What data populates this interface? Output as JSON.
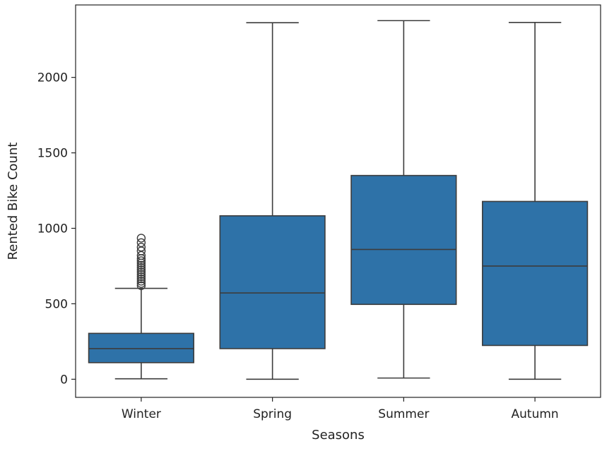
{
  "chart_data": {
    "type": "box",
    "xlabel": "Seasons",
    "ylabel": "Rented Bike Count",
    "categories": [
      "Winter",
      "Spring",
      "Summer",
      "Autumn"
    ],
    "yticks": [
      0,
      500,
      1000,
      1500,
      2000
    ],
    "ylim": [
      -120,
      2480
    ],
    "grid": false,
    "box_color": "#2e72a8",
    "line_color": "#3c3c3c",
    "boxes": [
      {
        "category": "Winter",
        "whisker_low": 3,
        "q1": 110,
        "median": 203,
        "q3": 304,
        "whisker_high": 602,
        "outliers": [
          620,
          635,
          650,
          665,
          680,
          695,
          710,
          725,
          740,
          755,
          770,
          785,
          800,
          820,
          850,
          875,
          905,
          935
        ]
      },
      {
        "category": "Spring",
        "whisker_low": 0,
        "q1": 203,
        "median": 572,
        "q3": 1083,
        "whisker_high": 2362,
        "outliers": []
      },
      {
        "category": "Summer",
        "whisker_low": 8,
        "q1": 496,
        "median": 860,
        "q3": 1350,
        "whisker_high": 2376,
        "outliers": []
      },
      {
        "category": "Autumn",
        "whisker_low": 0,
        "q1": 224,
        "median": 750,
        "q3": 1178,
        "whisker_high": 2364,
        "outliers": []
      }
    ]
  }
}
